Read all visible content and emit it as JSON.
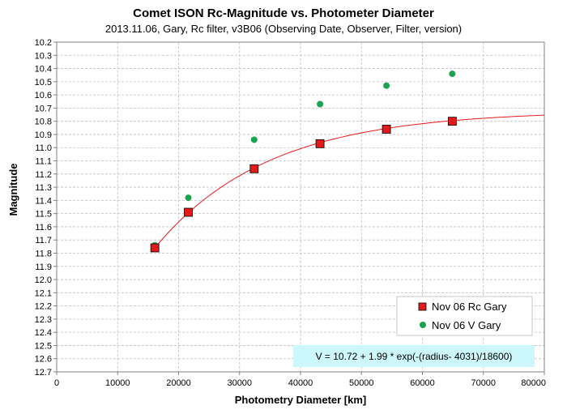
{
  "chart_data": {
    "type": "scatter",
    "title": "Comet ISON Rc-Magnitude vs. Photometer Diameter",
    "subtitle": "2013.11.06, Gary, Rc filter, v3B06 (Observing Date, Observer, Filter, version)",
    "xlabel": "Photometry Diameter  [km]",
    "ylabel": "Magnitude",
    "xlim": [
      0,
      80000
    ],
    "ylim": [
      12.7,
      10.2
    ],
    "y_inverted": true,
    "grid": true,
    "x_ticks": [
      "0",
      "10000",
      "20000",
      "30000",
      "40000",
      "50000",
      "60000",
      "70000",
      "80000"
    ],
    "y_ticks": [
      "10.2",
      "10.3",
      "10.4",
      "10.5",
      "10.6",
      "10.7",
      "10.8",
      "10.9",
      "11.0",
      "11.1",
      "11.2",
      "11.3",
      "11.4",
      "11.5",
      "11.6",
      "11.7",
      "11.8",
      "11.9",
      "12.0",
      "12.1",
      "12.2",
      "12.3",
      "12.4",
      "12.5",
      "12.6",
      "12.7"
    ],
    "legend_position": "lower-right",
    "series": [
      {
        "name": "Nov 06 Rc Gary",
        "marker": "square",
        "color": "#e31a1c",
        "x": [
          16100,
          21600,
          32400,
          43200,
          54100,
          64900
        ],
        "y": [
          11.76,
          11.49,
          11.16,
          10.97,
          10.86,
          10.8
        ]
      },
      {
        "name": "Nov 06 V Gary",
        "marker": "circle",
        "color": "#1aa350",
        "x": [
          16100,
          21600,
          32400,
          43200,
          54100,
          64900
        ],
        "y": [
          11.74,
          11.38,
          10.94,
          10.67,
          10.53,
          10.44
        ]
      }
    ],
    "fit": {
      "label": "V = 10.72 + 1.99 * exp(-(radius- 4031)/18600)",
      "a": 10.72,
      "b": 1.99,
      "r0": 4031,
      "scale": 18600,
      "x_from": 16000,
      "x_to": 80000,
      "color": "#e31a1c"
    }
  }
}
